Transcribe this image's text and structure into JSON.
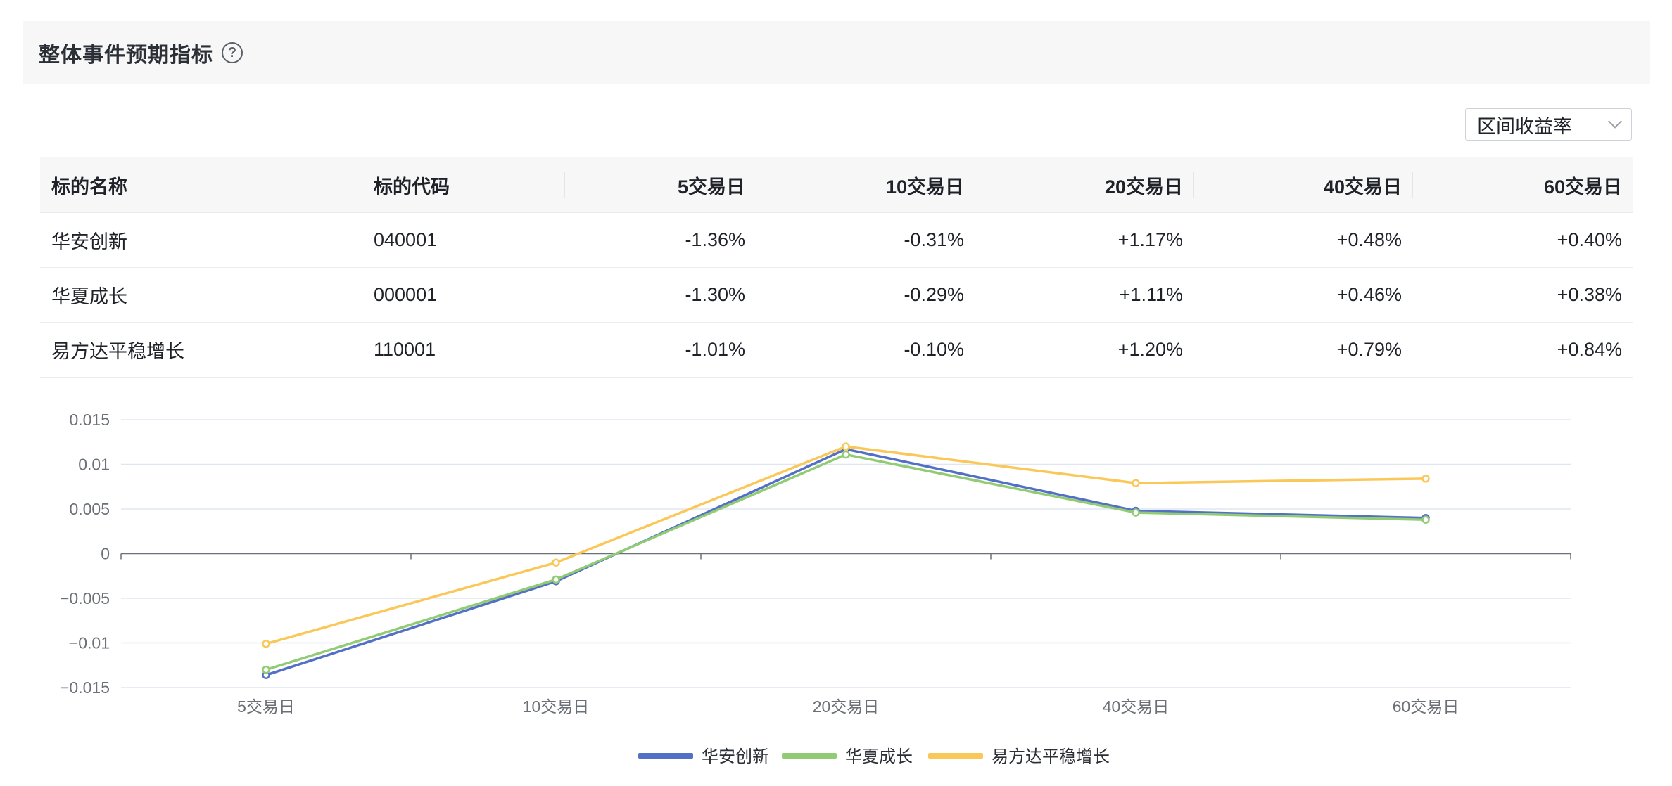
{
  "header": {
    "title": "整体事件预期指标",
    "help_icon": "question-circle-icon"
  },
  "metric_select": {
    "value": "区间收益率",
    "icon": "chevron-down-icon"
  },
  "table": {
    "columns": [
      "标的名称",
      "标的代码",
      "5交易日",
      "10交易日",
      "20交易日",
      "40交易日",
      "60交易日"
    ],
    "rows": [
      {
        "name": "华安创新",
        "code": "040001",
        "values": [
          "-1.36%",
          "-0.31%",
          "+1.17%",
          "+0.48%",
          "+0.40%"
        ]
      },
      {
        "name": "华夏成长",
        "code": "000001",
        "values": [
          "-1.30%",
          "-0.29%",
          "+1.11%",
          "+0.46%",
          "+0.38%"
        ]
      },
      {
        "name": "易方达平稳增长",
        "code": "110001",
        "values": [
          "-1.01%",
          "-0.10%",
          "+1.20%",
          "+0.79%",
          "+0.84%"
        ]
      }
    ],
    "colors": {
      "negative": "#3aa54a",
      "positive": "#e0392f"
    }
  },
  "chart_data": {
    "type": "line",
    "categories": [
      "5交易日",
      "10交易日",
      "20交易日",
      "40交易日",
      "60交易日"
    ],
    "series": [
      {
        "name": "华安创新",
        "color": "#5470c6",
        "values": [
          -0.0136,
          -0.0031,
          0.0117,
          0.0048,
          0.004
        ]
      },
      {
        "name": "华夏成长",
        "color": "#91cc75",
        "values": [
          -0.013,
          -0.0029,
          0.0111,
          0.0046,
          0.0038
        ]
      },
      {
        "name": "易方达平稳增长",
        "color": "#fac858",
        "values": [
          -0.0101,
          -0.001,
          0.012,
          0.0079,
          0.0084
        ]
      }
    ],
    "y_ticks": [
      "0.015",
      "0.01",
      "0.005",
      "0",
      "−0.005",
      "−0.01",
      "−0.015"
    ],
    "ylim": [
      -0.015,
      0.015
    ],
    "grid": true,
    "legend_position": "bottom-center"
  }
}
